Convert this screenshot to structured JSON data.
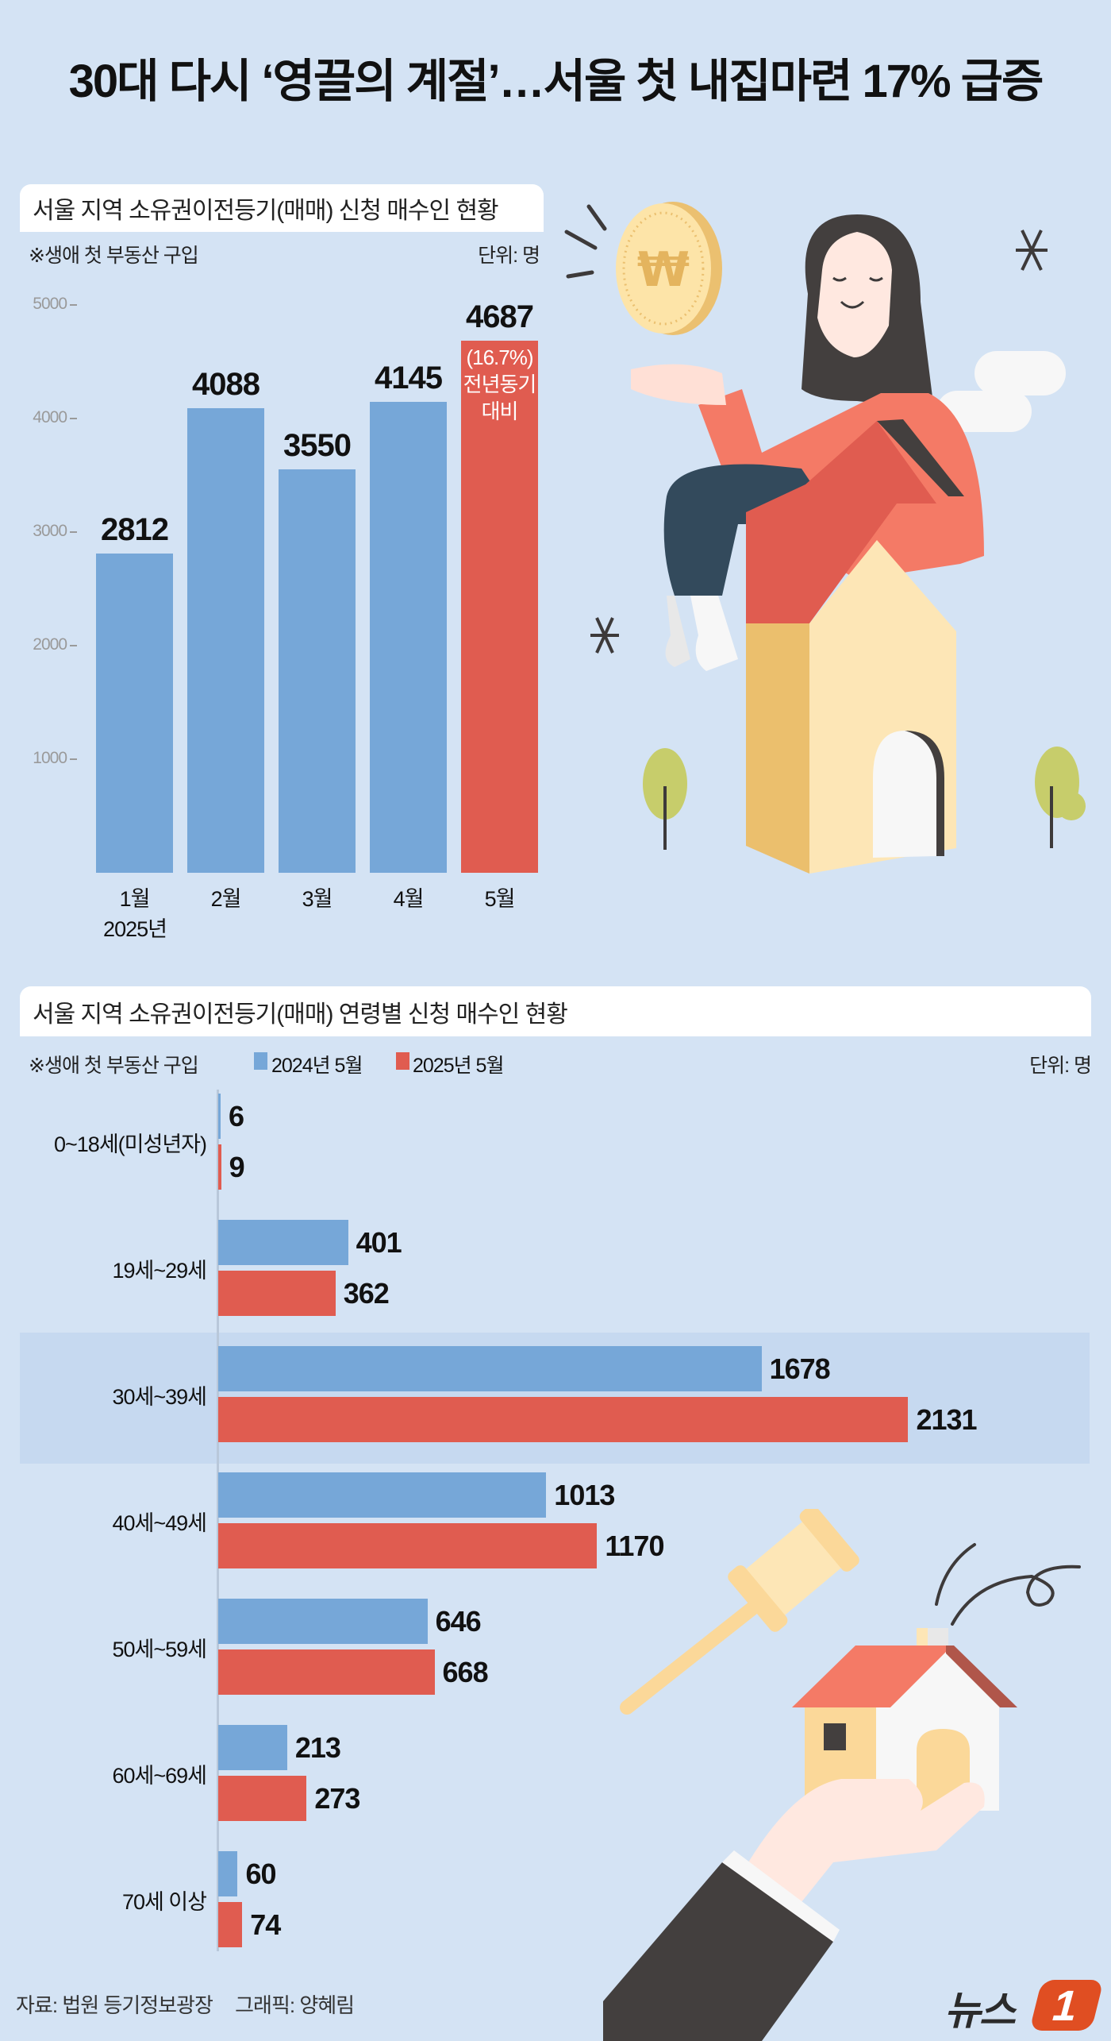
{
  "title": "30대 다시 ‘영끌의 계절’…서울 첫 내집마련 17% 급증",
  "section1": {
    "heading": "서울 지역 소유권이전등기(매매) 신청 매수인 현황",
    "note": "※생애 첫 부동산 구입",
    "unit": "단위: 명",
    "y_ticks": [
      "5000",
      "4000",
      "3000",
      "2000",
      "1000"
    ],
    "year_label": "2025년",
    "red_bar_annotation": [
      "(16.7%)",
      "전년동기",
      "대비"
    ]
  },
  "section2": {
    "heading": "서울 지역 소유권이전등기(매매) 연령별 신청 매수인 현황",
    "note": "※생애 첫 부동산 구입",
    "unit": "단위: 명",
    "legend": [
      {
        "label": "2024년 5월",
        "color": "#76a7d8"
      },
      {
        "label": "2025년 5월",
        "color": "#e05c50"
      }
    ],
    "highlighted_category": "30세~39세"
  },
  "footer": {
    "source": "자료: 법원 등기정보광장",
    "credit": "그래픽: 양혜림"
  },
  "logo": {
    "text": "뉴스",
    "badge": "1"
  },
  "colors": {
    "background": "#d4e3f4",
    "blue": "#76a7d8",
    "red": "#e05c50",
    "highlight": "#c6d9f0"
  },
  "chart_data": [
    {
      "type": "bar",
      "title": "서울 지역 소유권이전등기(매매) 신청 매수인 현황",
      "subtitle": "※생애 첫 부동산 구입",
      "xlabel": "2025년",
      "ylabel": "단위: 명",
      "categories": [
        "1월",
        "2월",
        "3월",
        "4월",
        "5월"
      ],
      "values": [
        2812,
        4088,
        3550,
        4145,
        4687
      ],
      "value_labels": [
        "2812",
        "4088",
        "3550",
        "4145",
        "4687"
      ],
      "highlight": {
        "index": 4,
        "color": "#e05c50",
        "annotation": "(16.7%) 전년동기 대비"
      },
      "ylim": [
        0,
        5000
      ],
      "y_ticks": [
        1000,
        2000,
        3000,
        4000,
        5000
      ],
      "grid": false
    },
    {
      "type": "bar",
      "orientation": "horizontal",
      "title": "서울 지역 소유권이전등기(매매) 연령별 신청 매수인 현황",
      "subtitle": "※생애 첫 부동산 구입",
      "ylabel": "단위: 명",
      "categories": [
        "0~18세(미성년자)",
        "19세~29세",
        "30세~39세",
        "40세~49세",
        "50세~59세",
        "60세~69세",
        "70세 이상"
      ],
      "series": [
        {
          "name": "2024년 5월",
          "color": "#76a7d8",
          "values": [
            6,
            401,
            1678,
            1013,
            646,
            213,
            60
          ]
        },
        {
          "name": "2025년 5월",
          "color": "#e05c50",
          "values": [
            9,
            362,
            2131,
            1170,
            668,
            273,
            74
          ]
        }
      ],
      "legend_position": "top-left",
      "grid": false
    }
  ]
}
